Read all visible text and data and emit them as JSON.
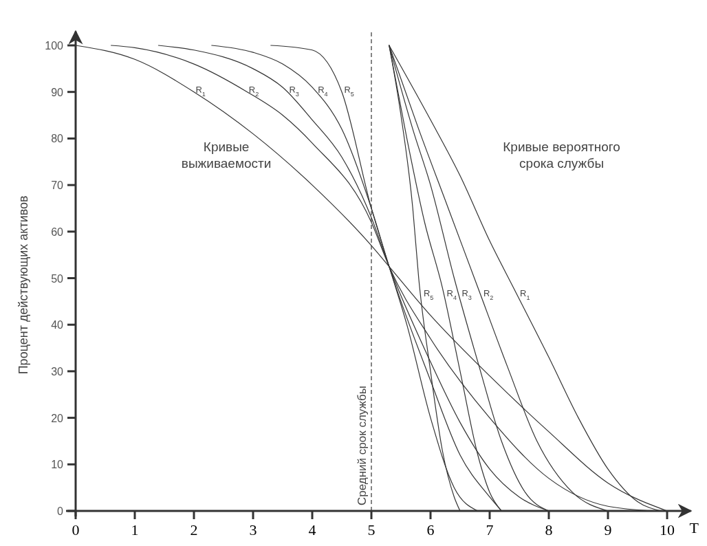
{
  "chart_data": {
    "type": "line",
    "ylabel": "Процент действующих активов",
    "xlabel": "T",
    "xlim": [
      0,
      10.4
    ],
    "ylim": [
      0,
      103
    ],
    "xticks": [
      0,
      1,
      2,
      3,
      4,
      5,
      6,
      7,
      8,
      9,
      10
    ],
    "yticks": [
      0,
      10,
      20,
      30,
      40,
      50,
      60,
      70,
      80,
      90,
      100
    ],
    "grid": false,
    "legend": false,
    "marker": "none",
    "line_style": "solid",
    "series": [
      {
        "name": "R$_{1}$",
        "color": "#333333",
        "x": [
          0,
          1,
          2,
          3,
          4,
          5,
          5.3,
          6,
          7,
          8,
          9,
          10
        ],
        "values": [
          100,
          97,
          90,
          81,
          70,
          57,
          52.5,
          42,
          29,
          17,
          6,
          0
        ]
      },
      {
        "name": "R$_{2}$",
        "color": "#333333",
        "x": [
          0.6,
          1,
          2,
          2.9,
          3.5,
          4,
          5,
          5.3,
          6,
          7,
          8,
          9,
          9.8
        ],
        "values": [
          100,
          99.5,
          96,
          90,
          85,
          79,
          62,
          52.5,
          37,
          20,
          7,
          1,
          0
        ]
      },
      {
        "name": "R$_{3}$",
        "color": "#333333",
        "x": [
          1.4,
          2,
          3,
          3.5,
          4,
          4.5,
          5,
          5.3,
          6,
          6.5,
          7,
          7.5,
          8
        ],
        "values": [
          100,
          99,
          95,
          91,
          84,
          76,
          63,
          52.5,
          32,
          19,
          9,
          3,
          0
        ]
      },
      {
        "name": "R$_{4}$",
        "color": "#333333",
        "x": [
          2.3,
          3,
          3.5,
          4,
          4.5,
          5,
          5.3,
          6,
          6.5,
          7,
          7.2
        ],
        "values": [
          100,
          98.5,
          96,
          91,
          82,
          65,
          52.5,
          28,
          12,
          3,
          0
        ]
      },
      {
        "name": "R$_{5}$",
        "color": "#333333",
        "x": [
          3.3,
          4,
          4.5,
          5,
          5.3,
          5.6,
          6,
          6.4,
          6.8
        ],
        "values": [
          100,
          99,
          90,
          65,
          52.5,
          40,
          20,
          5,
          0
        ]
      },
      {
        "name": "R$_{5}$",
        "color": "#333333",
        "x": [
          5.3,
          5.5,
          5.7,
          5.8,
          6,
          6.2,
          6.4,
          6.5
        ],
        "values": [
          100,
          85,
          65,
          50,
          30,
          13,
          3,
          0
        ]
      },
      {
        "name": "R$_{4}$",
        "color": "#333333",
        "x": [
          5.3,
          5.6,
          5.9,
          6.2,
          6.5,
          6.8,
          7,
          7.2
        ],
        "values": [
          100,
          80,
          62,
          48,
          30,
          12,
          4,
          0
        ]
      },
      {
        "name": "R$_{3}$",
        "color": "#333333",
        "x": [
          5.3,
          5.7,
          6,
          6.4,
          6.8,
          7.2,
          7.6,
          8
        ],
        "values": [
          100,
          82,
          70,
          50,
          32,
          15,
          4,
          0
        ]
      },
      {
        "name": "R$_{2}$",
        "color": "#333333",
        "x": [
          5.3,
          5.8,
          6.3,
          6.8,
          7.3,
          7.8,
          8.4,
          9
        ],
        "values": [
          100,
          82,
          65,
          48,
          31,
          15,
          4,
          0
        ]
      },
      {
        "name": "R$_{1}$",
        "color": "#333333",
        "x": [
          5.3,
          6,
          6.5,
          7,
          7.4,
          8,
          8.5,
          9,
          9.5,
          9.9
        ],
        "values": [
          100,
          84,
          72,
          58,
          48,
          33,
          20,
          9,
          2,
          0
        ]
      }
    ],
    "ref_lines": [
      {
        "axis": "x",
        "value": 5,
        "label": "Средний срок службы",
        "line_style": "dashed",
        "color": "#333333"
      }
    ],
    "annotations": [
      "Кривые\nвыживаемости",
      "Кривые вероятного\nсрока службы"
    ]
  }
}
